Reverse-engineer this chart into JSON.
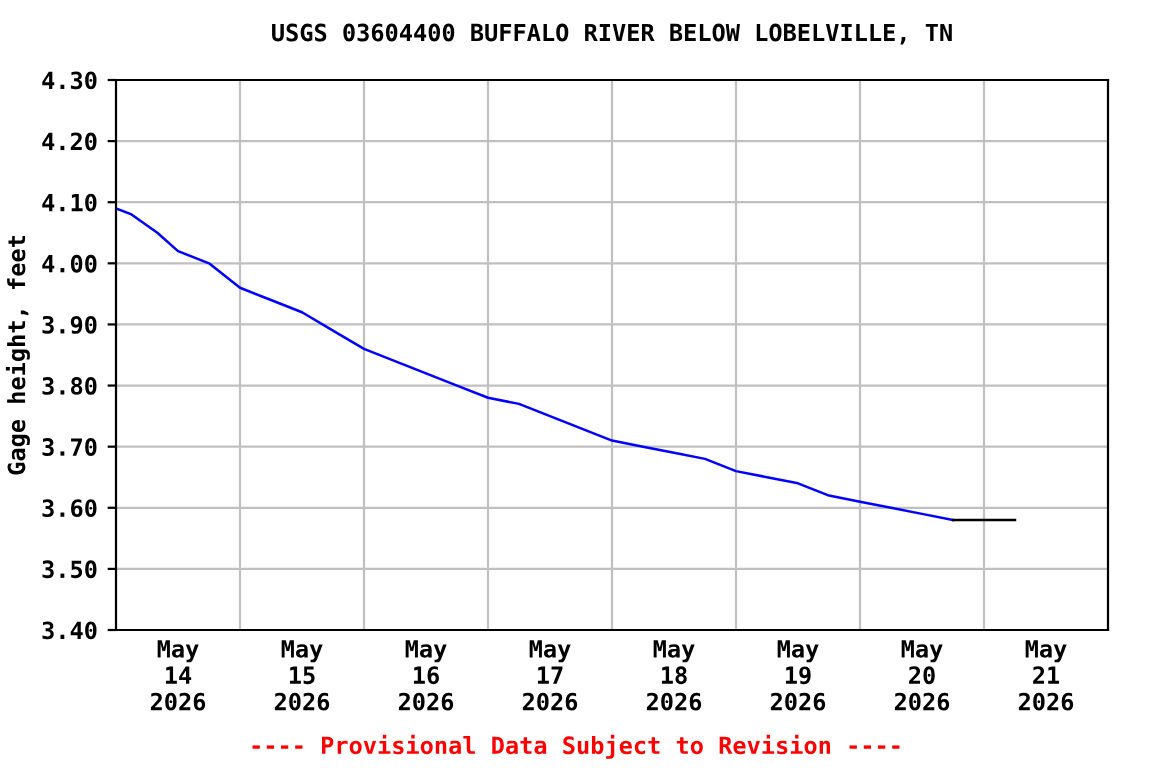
{
  "chart_data": {
    "type": "line",
    "title": "USGS 03604400 BUFFALO RIVER BELOW LOBELVILLE, TN",
    "ylabel": "Gage height, feet",
    "annotations": [
      "---- Provisional Data Subject to Revision ----"
    ],
    "series": [
      {
        "color": "#0000ff",
        "x": [
          "2026-05-14T00:00",
          "2026-05-14T03:00",
          "2026-05-14T08:00",
          "2026-05-14T12:00",
          "2026-05-14T18:00",
          "2026-05-15T00:00",
          "2026-05-15T06:00",
          "2026-05-15T12:00",
          "2026-05-15T18:00",
          "2026-05-16T00:00",
          "2026-05-16T06:00",
          "2026-05-16T12:00",
          "2026-05-16T18:00",
          "2026-05-17T00:00",
          "2026-05-17T06:00",
          "2026-05-17T12:00",
          "2026-05-17T18:00",
          "2026-05-18T00:00",
          "2026-05-18T06:00",
          "2026-05-18T12:00",
          "2026-05-18T18:00",
          "2026-05-19T00:00",
          "2026-05-19T06:00",
          "2026-05-19T12:00",
          "2026-05-19T18:00",
          "2026-05-20T00:00",
          "2026-05-20T06:00",
          "2026-05-20T12:00",
          "2026-05-20T18:00"
        ],
        "values": [
          4.09,
          4.08,
          4.05,
          4.02,
          4.0,
          3.96,
          3.94,
          3.92,
          3.89,
          3.86,
          3.84,
          3.82,
          3.8,
          3.78,
          3.77,
          3.75,
          3.73,
          3.71,
          3.7,
          3.69,
          3.68,
          3.66,
          3.65,
          3.64,
          3.62,
          3.61,
          3.6,
          3.59,
          3.58
        ]
      },
      {
        "color": "#000000",
        "x": [
          "2026-05-20T18:00",
          "2026-05-21T06:00"
        ],
        "values": [
          3.58,
          3.58
        ]
      }
    ],
    "xlim": [
      "2026-05-14T00:00",
      "2026-05-22T00:00"
    ],
    "xticks": [
      {
        "value": "2026-05-15T00:00",
        "label": null
      },
      {
        "value": "2026-05-16T00:00",
        "label": null
      },
      {
        "value": "2026-05-17T00:00",
        "label": null
      },
      {
        "value": "2026-05-18T00:00",
        "label": null
      },
      {
        "value": "2026-05-19T00:00",
        "label": null
      },
      {
        "value": "2026-05-20T00:00",
        "label": null
      },
      {
        "value": "2026-05-21T00:00",
        "label": null
      },
      {
        "value": "2026-05-14T12:00",
        "label": "May\n14\n2026"
      },
      {
        "value": "2026-05-15T12:00",
        "label": "May\n15\n2026"
      },
      {
        "value": "2026-05-16T12:00",
        "label": "May\n16\n2026"
      },
      {
        "value": "2026-05-17T12:00",
        "label": "May\n17\n2026"
      },
      {
        "value": "2026-05-18T12:00",
        "label": "May\n18\n2026"
      },
      {
        "value": "2026-05-19T12:00",
        "label": "May\n19\n2026"
      },
      {
        "value": "2026-05-20T12:00",
        "label": "May\n20\n2026"
      },
      {
        "value": "2026-05-21T12:00",
        "label": "May\n21\n2026"
      }
    ],
    "ylim": [
      3.4,
      4.3
    ],
    "yticks": [
      {
        "value": 3.4,
        "label": "3.40"
      },
      {
        "value": 3.5,
        "label": "3.50"
      },
      {
        "value": 3.6,
        "label": "3.60"
      },
      {
        "value": 3.7,
        "label": "3.70"
      },
      {
        "value": 3.8,
        "label": "3.80"
      },
      {
        "value": 3.9,
        "label": "3.90"
      },
      {
        "value": 4.0,
        "label": "4.00"
      },
      {
        "value": 4.1,
        "label": "4.10"
      },
      {
        "value": 4.2,
        "label": "4.20"
      },
      {
        "value": 4.3,
        "label": "4.30"
      }
    ],
    "grid": true
  }
}
